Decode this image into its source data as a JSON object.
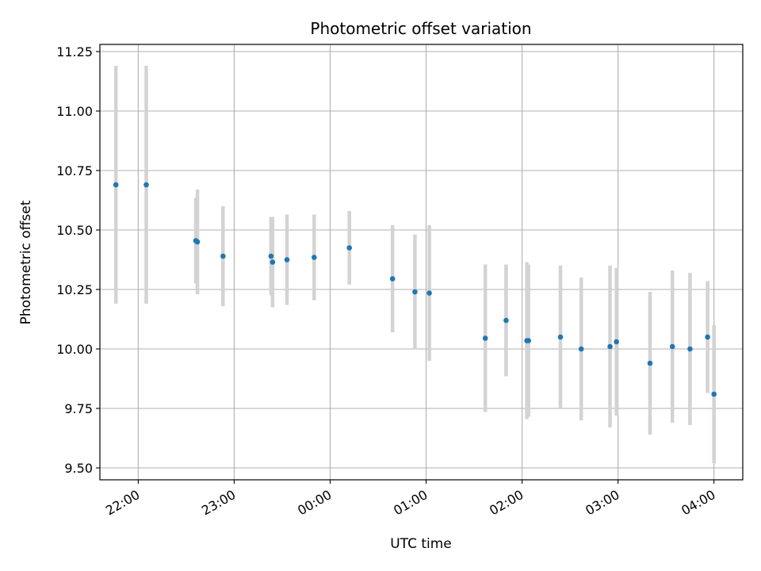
{
  "chart_data": {
    "type": "scatter",
    "title": "Photometric offset variation",
    "xlabel": "UTC time",
    "ylabel": "Photometric offset",
    "xlim": [
      "2023-01-01T21:36",
      "2023-01-02T04:18"
    ],
    "ylim": [
      9.45,
      11.28
    ],
    "x_ticks": [
      {
        "time": "2023-01-01T22:00",
        "label": "22:00"
      },
      {
        "time": "2023-01-01T23:00",
        "label": "23:00"
      },
      {
        "time": "2023-01-02T00:00",
        "label": "00:00"
      },
      {
        "time": "2023-01-02T01:00",
        "label": "01:00"
      },
      {
        "time": "2023-01-02T02:00",
        "label": "02:00"
      },
      {
        "time": "2023-01-02T03:00",
        "label": "03:00"
      },
      {
        "time": "2023-01-02T04:00",
        "label": "04:00"
      }
    ],
    "y_ticks": [
      9.5,
      9.75,
      10.0,
      10.25,
      10.5,
      10.75,
      11.0,
      11.25
    ],
    "y_tick_labels": [
      "9.50",
      "9.75",
      "10.00",
      "10.25",
      "10.50",
      "10.75",
      "11.00",
      "11.25"
    ],
    "grid": true,
    "point_color": "#1f77b4",
    "errorbar_color": "#d3d3d3",
    "points": [
      {
        "x": "2023-01-01T21:46",
        "y": 10.69,
        "err": 0.5
      },
      {
        "x": "2023-01-01T22:05",
        "y": 10.69,
        "err": 0.5
      },
      {
        "x": "2023-01-01T22:36",
        "y": 10.455,
        "err": 0.18
      },
      {
        "x": "2023-01-01T22:37",
        "y": 10.45,
        "err": 0.22
      },
      {
        "x": "2023-01-01T22:53",
        "y": 10.39,
        "err": 0.21
      },
      {
        "x": "2023-01-01T23:23",
        "y": 10.39,
        "err": 0.165
      },
      {
        "x": "2023-01-01T23:24",
        "y": 10.365,
        "err": 0.19
      },
      {
        "x": "2023-01-01T23:33",
        "y": 10.375,
        "err": 0.19
      },
      {
        "x": "2023-01-01T23:50",
        "y": 10.385,
        "err": 0.18
      },
      {
        "x": "2023-01-02T00:12",
        "y": 10.425,
        "err": 0.155
      },
      {
        "x": "2023-01-02T00:39",
        "y": 10.295,
        "err": 0.225
      },
      {
        "x": "2023-01-02T00:53",
        "y": 10.24,
        "err": 0.24
      },
      {
        "x": "2023-01-02T01:02",
        "y": 10.235,
        "err": 0.285
      },
      {
        "x": "2023-01-02T01:37",
        "y": 10.045,
        "err": 0.31
      },
      {
        "x": "2023-01-02T01:50",
        "y": 10.12,
        "err": 0.235
      },
      {
        "x": "2023-01-02T02:03",
        "y": 10.035,
        "err": 0.33
      },
      {
        "x": "2023-01-02T02:04",
        "y": 10.035,
        "err": 0.32
      },
      {
        "x": "2023-01-02T02:24",
        "y": 10.05,
        "err": 0.3
      },
      {
        "x": "2023-01-02T02:37",
        "y": 10.0,
        "err": 0.3
      },
      {
        "x": "2023-01-02T02:55",
        "y": 10.01,
        "err": 0.34
      },
      {
        "x": "2023-01-02T02:59",
        "y": 10.03,
        "err": 0.31
      },
      {
        "x": "2023-01-02T03:20",
        "y": 9.94,
        "err": 0.3
      },
      {
        "x": "2023-01-02T03:34",
        "y": 10.01,
        "err": 0.32
      },
      {
        "x": "2023-01-02T03:45",
        "y": 10.0,
        "err": 0.32
      },
      {
        "x": "2023-01-02T03:56",
        "y": 10.05,
        "err": 0.235
      },
      {
        "x": "2023-01-02T04:00",
        "y": 9.81,
        "err": 0.29
      }
    ]
  }
}
